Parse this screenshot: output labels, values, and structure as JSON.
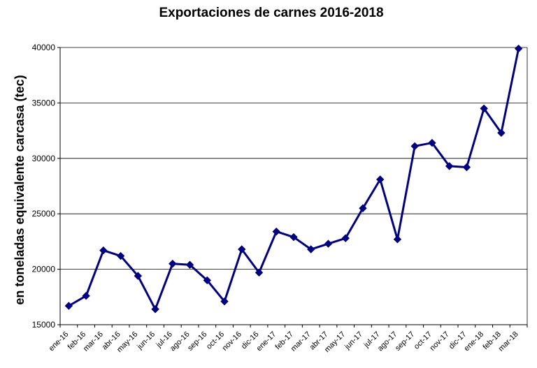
{
  "chart_data": {
    "type": "line",
    "title": "Exportaciones de carnes 2016-2018",
    "xlabel": "",
    "ylabel": "en toneladas equivalente carcasa (tec)",
    "ylim": [
      15000,
      40000
    ],
    "yticks": [
      15000,
      20000,
      25000,
      30000,
      35000,
      40000
    ],
    "grid": "horizontal",
    "legend": "none",
    "categories": [
      "ene-16",
      "feb-16",
      "mar-16",
      "abr-16",
      "may-16",
      "jun-16",
      "jul-16",
      "ago-16",
      "sep-16",
      "oct-16",
      "nov-16",
      "dic-16",
      "ene-17",
      "feb-17",
      "mar-17",
      "abr-17",
      "may-17",
      "jun-17",
      "jul-17",
      "ago-17",
      "sep-17",
      "oct-17",
      "nov-17",
      "dic-17",
      "ene-18",
      "feb-18",
      "mar-18"
    ],
    "series": [
      {
        "color": "#000080",
        "values": [
          16700,
          17600,
          21700,
          21200,
          19400,
          16400,
          20500,
          20400,
          19000,
          17100,
          21800,
          19700,
          23400,
          22900,
          21800,
          22300,
          22800,
          25500,
          28100,
          22700,
          31100,
          31400,
          29300,
          29200,
          34500,
          32300,
          39900
        ]
      }
    ]
  }
}
